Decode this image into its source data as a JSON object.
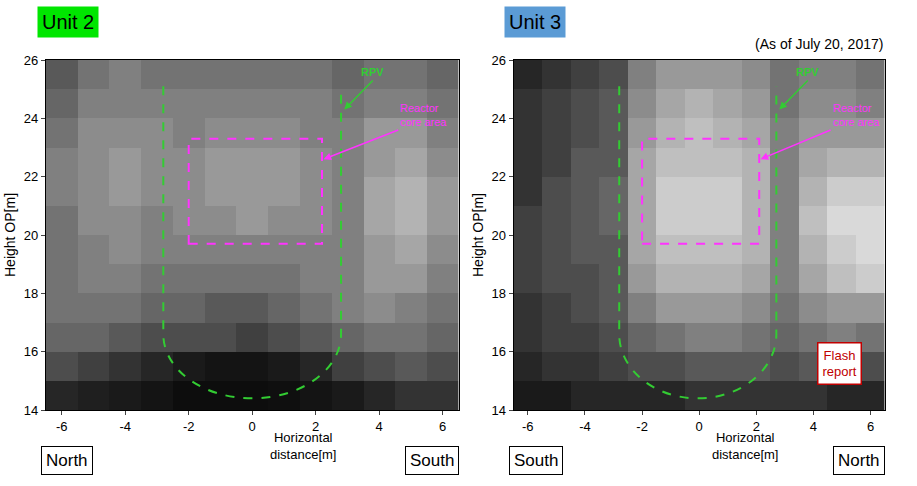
{
  "chart_data": [
    {
      "type": "heatmap",
      "title": "Unit 2",
      "xlabel": "Horizontal distance[m]",
      "ylabel": "Height OP[m]",
      "left_label": "North",
      "right_label": "South",
      "rpv_label": "RPV",
      "core_label": "Reactor core area",
      "xlim": [
        -6.5,
        6.5
      ],
      "ylim": [
        14,
        26
      ],
      "xticks": [
        -6,
        -4,
        -2,
        0,
        2,
        4,
        6
      ],
      "yticks": [
        14,
        16,
        18,
        20,
        22,
        24,
        26
      ],
      "zlim": [
        0,
        1
      ],
      "rpv": {
        "x_left": -2.8,
        "x_right": 2.8,
        "top": 25.1,
        "straight_bottom": 16.6,
        "bottom": 14.4
      },
      "core_area": {
        "x0": -2,
        "x1": 2.2,
        "y0": 19.7,
        "y1": 23.3
      },
      "x": [
        -6,
        -5,
        -4,
        -3,
        -2,
        -1,
        0,
        1,
        2,
        3,
        4,
        5,
        6
      ],
      "y": [
        14.5,
        15.5,
        16.5,
        17.5,
        18.5,
        19.5,
        20.5,
        21.5,
        22.5,
        23.5,
        24.5,
        25.5
      ],
      "z": [
        [
          0.15,
          0.12,
          0.1,
          0.08,
          0.05,
          0.05,
          0.05,
          0.06,
          0.08,
          0.1,
          0.15,
          0.2,
          0.2
        ],
        [
          0.3,
          0.25,
          0.2,
          0.15,
          0.1,
          0.08,
          0.08,
          0.1,
          0.15,
          0.25,
          0.3,
          0.35,
          0.3
        ],
        [
          0.4,
          0.4,
          0.35,
          0.3,
          0.3,
          0.3,
          0.25,
          0.3,
          0.35,
          0.4,
          0.45,
          0.45,
          0.4
        ],
        [
          0.45,
          0.45,
          0.45,
          0.4,
          0.4,
          0.35,
          0.35,
          0.4,
          0.45,
          0.5,
          0.55,
          0.5,
          0.45
        ],
        [
          0.45,
          0.5,
          0.5,
          0.45,
          0.45,
          0.45,
          0.45,
          0.45,
          0.5,
          0.5,
          0.6,
          0.6,
          0.5
        ],
        [
          0.45,
          0.5,
          0.55,
          0.5,
          0.5,
          0.5,
          0.5,
          0.5,
          0.5,
          0.5,
          0.6,
          0.65,
          0.55
        ],
        [
          0.45,
          0.55,
          0.55,
          0.5,
          0.55,
          0.55,
          0.6,
          0.55,
          0.55,
          0.5,
          0.65,
          0.7,
          0.6
        ],
        [
          0.5,
          0.55,
          0.6,
          0.55,
          0.55,
          0.6,
          0.6,
          0.6,
          0.55,
          0.5,
          0.65,
          0.7,
          0.6
        ],
        [
          0.5,
          0.55,
          0.6,
          0.55,
          0.55,
          0.6,
          0.6,
          0.6,
          0.55,
          0.5,
          0.6,
          0.65,
          0.55
        ],
        [
          0.45,
          0.55,
          0.55,
          0.55,
          0.5,
          0.55,
          0.55,
          0.55,
          0.5,
          0.5,
          0.6,
          0.6,
          0.5
        ],
        [
          0.4,
          0.5,
          0.5,
          0.5,
          0.5,
          0.5,
          0.5,
          0.5,
          0.5,
          0.45,
          0.5,
          0.5,
          0.45
        ],
        [
          0.35,
          0.45,
          0.5,
          0.45,
          0.45,
          0.45,
          0.45,
          0.45,
          0.45,
          0.4,
          0.45,
          0.45,
          0.4
        ]
      ]
    },
    {
      "type": "heatmap",
      "title": "Unit 3",
      "note": "(As of July 20, 2017)",
      "stamp": "Flash report",
      "xlabel": "Horizontal distance[m]",
      "ylabel": "Height OP[m]",
      "left_label": "South",
      "right_label": "North",
      "rpv_label": "RPV",
      "core_label": "Reactor core area",
      "xlim": [
        -6.5,
        6.5
      ],
      "ylim": [
        14,
        26
      ],
      "xticks": [
        -6,
        -4,
        -2,
        0,
        2,
        4,
        6
      ],
      "yticks": [
        14,
        16,
        18,
        20,
        22,
        24,
        26
      ],
      "zlim": [
        0,
        1
      ],
      "rpv": {
        "x_left": -2.8,
        "x_right": 2.7,
        "top": 25.1,
        "straight_bottom": 16.6,
        "bottom": 14.4
      },
      "core_area": {
        "x0": -2,
        "x1": 2.1,
        "y0": 19.7,
        "y1": 23.3
      },
      "x": [
        -6,
        -5,
        -4,
        -3,
        -2,
        -1,
        0,
        1,
        2,
        3,
        4,
        5,
        6
      ],
      "y": [
        14.5,
        15.5,
        16.5,
        17.5,
        18.5,
        19.5,
        20.5,
        21.5,
        22.5,
        23.5,
        24.5,
        25.5
      ],
      "z": [
        [
          0.1,
          0.1,
          0.15,
          0.15,
          0.15,
          0.15,
          0.2,
          0.2,
          0.2,
          0.2,
          0.2,
          0.15,
          0.15
        ],
        [
          0.15,
          0.2,
          0.2,
          0.25,
          0.3,
          0.3,
          0.35,
          0.35,
          0.35,
          0.3,
          0.35,
          0.3,
          0.3
        ],
        [
          0.2,
          0.25,
          0.25,
          0.3,
          0.4,
          0.45,
          0.5,
          0.5,
          0.45,
          0.4,
          0.45,
          0.5,
          0.45
        ],
        [
          0.2,
          0.25,
          0.3,
          0.35,
          0.5,
          0.6,
          0.6,
          0.6,
          0.55,
          0.45,
          0.55,
          0.6,
          0.6
        ],
        [
          0.25,
          0.3,
          0.3,
          0.35,
          0.6,
          0.7,
          0.7,
          0.7,
          0.65,
          0.5,
          0.65,
          0.75,
          0.8
        ],
        [
          0.25,
          0.3,
          0.35,
          0.35,
          0.65,
          0.75,
          0.75,
          0.75,
          0.7,
          0.5,
          0.7,
          0.8,
          0.85
        ],
        [
          0.25,
          0.3,
          0.35,
          0.4,
          0.65,
          0.8,
          0.8,
          0.8,
          0.7,
          0.5,
          0.75,
          0.85,
          0.85
        ],
        [
          0.2,
          0.3,
          0.35,
          0.4,
          0.65,
          0.8,
          0.8,
          0.8,
          0.7,
          0.5,
          0.7,
          0.8,
          0.8
        ],
        [
          0.2,
          0.25,
          0.35,
          0.35,
          0.65,
          0.75,
          0.75,
          0.75,
          0.7,
          0.5,
          0.65,
          0.7,
          0.7
        ],
        [
          0.2,
          0.25,
          0.3,
          0.35,
          0.6,
          0.7,
          0.75,
          0.7,
          0.65,
          0.5,
          0.6,
          0.6,
          0.6
        ],
        [
          0.2,
          0.25,
          0.3,
          0.35,
          0.55,
          0.65,
          0.7,
          0.65,
          0.6,
          0.45,
          0.55,
          0.55,
          0.5
        ],
        [
          0.15,
          0.2,
          0.25,
          0.3,
          0.5,
          0.6,
          0.6,
          0.6,
          0.55,
          0.45,
          0.5,
          0.5,
          0.45
        ]
      ]
    }
  ]
}
